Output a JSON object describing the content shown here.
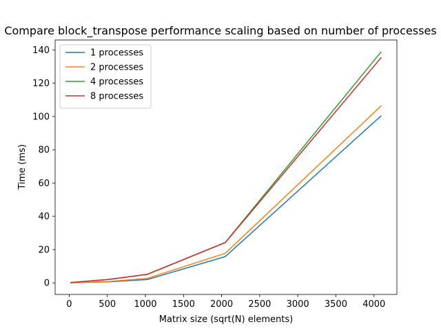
{
  "chart_data": {
    "type": "line",
    "title": "Compare block_transpose performance scaling based on number of processes",
    "xlabel": "Matrix size (sqrt(N) elements)",
    "ylabel": "Time (ms)",
    "xlim": [
      -184.8,
      4300.8
    ],
    "ylim": [
      -6.95,
      145.95
    ],
    "xticks": [
      0,
      500,
      1000,
      1500,
      2000,
      2500,
      3000,
      3500,
      4000
    ],
    "yticks": [
      0,
      20,
      40,
      60,
      80,
      100,
      120,
      140
    ],
    "x": [
      16,
      512,
      1024,
      2048,
      4096
    ],
    "grid": false,
    "legend_position": "top-left",
    "series": [
      {
        "name": "1 processes",
        "color": "#1f77b4",
        "values": [
          0.1,
          0.6,
          2.0,
          15.8,
          100.5
        ]
      },
      {
        "name": "2 processes",
        "color": "#ff7f0e",
        "values": [
          0.1,
          0.8,
          2.7,
          17.8,
          106.5
        ]
      },
      {
        "name": "4 processes",
        "color": "#2ca02c",
        "values": [
          0.2,
          2.0,
          5.2,
          24.3,
          139.0
        ]
      },
      {
        "name": "8 processes",
        "color": "#d62728",
        "values": [
          0.2,
          2.1,
          5.1,
          24.2,
          135.5
        ]
      }
    ]
  }
}
